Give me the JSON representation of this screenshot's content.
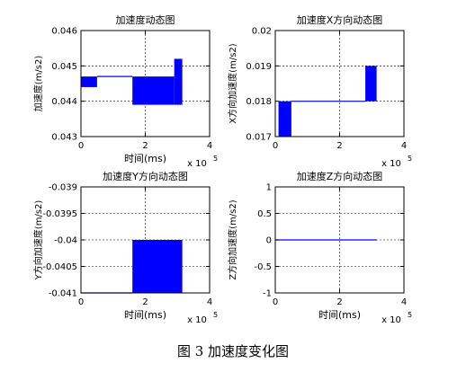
{
  "caption": "图 3  加速度变化图",
  "chart_data": [
    {
      "type": "area",
      "title": "加速度动态图",
      "xlabel": "时间(ms)",
      "ylabel": "加速度(m/s2)",
      "x_exponent": "x 10",
      "x_exponent_power": "5",
      "xlim": [
        0,
        400000
      ],
      "ylim": [
        0.043,
        0.046
      ],
      "xticks": [
        "0",
        "2",
        "4"
      ],
      "yticks": [
        "0.043",
        "0.044",
        "0.045",
        "0.046"
      ],
      "grid": true,
      "color": "#0000ff",
      "bands": [
        {
          "x0": 0,
          "x1": 50000,
          "low": 0.0444,
          "high": 0.0447
        },
        {
          "x0": 160000,
          "x1": 290000,
          "low": 0.0439,
          "high": 0.0447
        },
        {
          "x0": 290000,
          "x1": 315000,
          "low": 0.0439,
          "high": 0.0452
        }
      ],
      "line": {
        "x": [
          50000,
          160000
        ],
        "y": [
          0.0447,
          0.0447
        ]
      }
    },
    {
      "type": "area",
      "title": "加速度X方向动态图",
      "xlabel": "",
      "ylabel": "X方向加速度(m/s2)",
      "x_exponent": "x 10",
      "x_exponent_power": "5",
      "xlim": [
        0,
        400000
      ],
      "ylim": [
        0.017,
        0.02
      ],
      "xticks": [
        "0",
        "2",
        "4"
      ],
      "yticks": [
        "0.017",
        "0.018",
        "0.019",
        "0.02"
      ],
      "grid": true,
      "color": "#0000ff",
      "bands": [
        {
          "x0": 10000,
          "x1": 50000,
          "low": 0.017,
          "high": 0.018
        },
        {
          "x0": 280000,
          "x1": 315000,
          "low": 0.018,
          "high": 0.019
        }
      ],
      "line": {
        "x": [
          50000,
          280000
        ],
        "y": [
          0.018,
          0.018
        ]
      }
    },
    {
      "type": "area",
      "title": "加速度Y方向动态图",
      "xlabel": "时间(ms)",
      "ylabel": "Y方向加速度(m/s2)",
      "x_exponent": "x 10",
      "x_exponent_power": "5",
      "xlim": [
        0,
        400000
      ],
      "ylim": [
        -0.041,
        -0.039
      ],
      "xticks": [
        "0",
        "2",
        "4"
      ],
      "yticks": [
        "-0.041",
        "-0.0405",
        "-0.04",
        "-0.0395",
        "-0.039"
      ],
      "grid": true,
      "color": "#0000ff",
      "bands": [
        {
          "x0": 160000,
          "x1": 315000,
          "low": -0.041,
          "high": -0.04
        }
      ],
      "line": {
        "x": [
          0,
          160000
        ],
        "y": [
          -0.041,
          -0.041
        ]
      }
    },
    {
      "type": "line",
      "title": "加速度Z方向动态图",
      "xlabel": "时间(ms)",
      "ylabel": "Z方向加速度(m/s2)",
      "x_exponent": "x 10",
      "x_exponent_power": "5",
      "xlim": [
        0,
        400000
      ],
      "ylim": [
        -1,
        1
      ],
      "xticks": [
        "0",
        "2",
        "4"
      ],
      "yticks": [
        "-1",
        "-0.5",
        "0",
        "0.5",
        "1"
      ],
      "grid": true,
      "color": "#0000ff",
      "bands": [],
      "line": {
        "x": [
          0,
          315000
        ],
        "y": [
          0,
          0
        ]
      }
    }
  ]
}
